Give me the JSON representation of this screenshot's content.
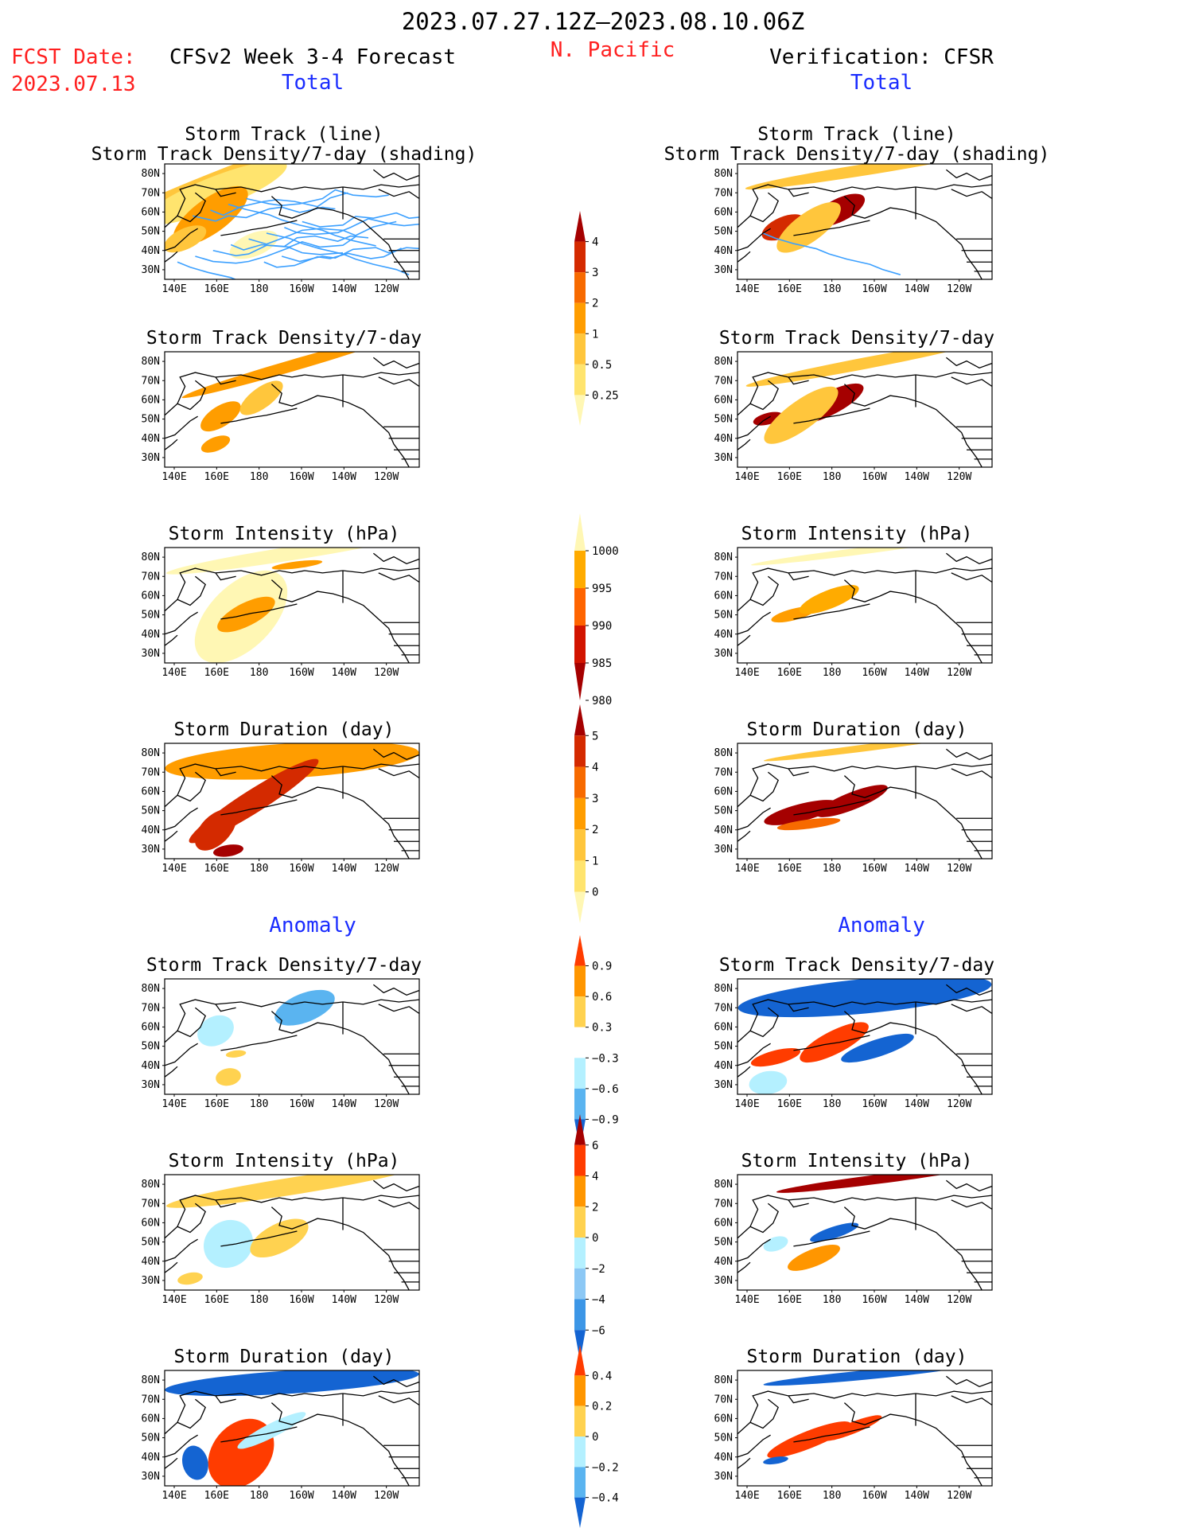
{
  "header": {
    "period": "2023.07.27.12Z–2023.08.10.06Z",
    "region": "N. Pacific",
    "fcst_label": "FCST Date:",
    "fcst_date": "2023.07.13",
    "left_title": "CFSv2 Week 3-4 Forecast",
    "right_title": "Verification: CFSR",
    "total_label": "Total",
    "anomaly_label": "Anomaly"
  },
  "axes": {
    "lat_labels": [
      "80N",
      "70N",
      "60N",
      "50N",
      "40N",
      "30N"
    ],
    "lon_labels": [
      "140E",
      "160E",
      "180",
      "160W",
      "140W",
      "120W"
    ]
  },
  "panels": [
    {
      "title1": "Storm Track (line)",
      "title2": "Storm Track Density/7-day (shading)",
      "left_field": "track_fcst",
      "right_field": "track_obs",
      "scale": "density"
    },
    {
      "title1": "Storm Track Density/7-day",
      "title2": "",
      "left_field": "dens_fcst",
      "right_field": "dens_obs",
      "scale": "density"
    },
    {
      "title1": "Storm Intensity (hPa)",
      "title2": "",
      "left_field": "int_fcst",
      "right_field": "int_obs",
      "scale": "intensity"
    },
    {
      "title1": "Storm Duration (day)",
      "title2": "",
      "left_field": "dur_fcst",
      "right_field": "dur_obs",
      "scale": "duration"
    },
    {
      "title1": "Storm Track Density/7-day",
      "title2": "",
      "left_field": "dens_anom_fcst",
      "right_field": "dens_anom_obs",
      "scale": "dens_anom"
    },
    {
      "title1": "Storm Intensity (hPa)",
      "title2": "",
      "left_field": "int_anom_fcst",
      "right_field": "int_anom_obs",
      "scale": "int_anom"
    },
    {
      "title1": "Storm Duration (day)",
      "title2": "",
      "left_field": "dur_anom_fcst",
      "right_field": "dur_anom_obs",
      "scale": "dur_anom"
    }
  ],
  "colorbars": [
    {
      "id": "density",
      "labels": [
        "4",
        "3",
        "2",
        "1",
        "0.5",
        "0.25"
      ],
      "colors": [
        "#a50000",
        "#d42a00",
        "#f76a00",
        "#ff9d00",
        "#ffc63c",
        "#ffe46e",
        "#fff7b4"
      ]
    },
    {
      "id": "intensity",
      "labels": [
        "1000",
        "995",
        "990",
        "985",
        "980"
      ],
      "colors": [
        "#fff7b4",
        "#ffab00",
        "#ff6400",
        "#d21400",
        "#a50000"
      ]
    },
    {
      "id": "duration",
      "labels": [
        "5",
        "4",
        "3",
        "2",
        "1",
        "0"
      ],
      "colors": [
        "#a50000",
        "#d42a00",
        "#f76a00",
        "#ff9d00",
        "#ffc63c",
        "#ffe46e",
        "#fff7b4"
      ]
    },
    {
      "id": "dens_anom",
      "labels": [
        "0.9",
        "0.6",
        "0.3",
        "−0.3",
        "−0.6",
        "−0.9"
      ],
      "colors": [
        "#ff3c00",
        "#ff9600",
        "#ffd250",
        "#ffffff",
        "#b4f0ff",
        "#5ab4f0",
        "#1464d2"
      ]
    },
    {
      "id": "int_anom",
      "labels": [
        "6",
        "4",
        "2",
        "0",
        "−2",
        "−4",
        "−6"
      ],
      "colors": [
        "#a50000",
        "#ff3c00",
        "#ff9600",
        "#ffd250",
        "#b4f0ff",
        "#8cc8f5",
        "#3c96e6",
        "#1464d2"
      ]
    },
    {
      "id": "dur_anom",
      "labels": [
        "0.4",
        "0.2",
        "0",
        "−0.2",
        "−0.4"
      ],
      "colors": [
        "#ff3c00",
        "#ff9600",
        "#ffd250",
        "#b4f0ff",
        "#5ab4f0",
        "#1464d2"
      ]
    }
  ],
  "map_data": {
    "projection": "lat-lon, 140E–110W, 25N–85N",
    "fields": {
      "track_fcst": [
        [
          0.22,
          0.1,
          0.95,
          0.1,
          "#ffc63c",
          0.12
        ],
        [
          0.2,
          0.25,
          0.6,
          0.28,
          "#ffe46e",
          0.12
        ],
        [
          0.18,
          0.45,
          0.35,
          0.3,
          "#ff9d00",
          0.2
        ],
        [
          0.08,
          0.65,
          0.18,
          0.18,
          "#ffc63c",
          0.14
        ],
        [
          0.35,
          0.7,
          0.2,
          0.2,
          "#fff7b4",
          0.12
        ]
      ],
      "track_obs": [
        [
          0.5,
          0.05,
          0.95,
          0.1,
          "#ffc63c",
          0.05
        ],
        [
          0.18,
          0.55,
          0.18,
          0.18,
          "#d42a00",
          0.13
        ],
        [
          0.4,
          0.4,
          0.22,
          0.2,
          "#a50000",
          0.15
        ],
        [
          0.28,
          0.55,
          0.3,
          0.25,
          "#ffc63c",
          0.2
        ]
      ],
      "dens_fcst": [
        [
          0.5,
          0.12,
          0.9,
          0.1,
          "#ff9d00",
          0.09
        ],
        [
          0.22,
          0.56,
          0.18,
          0.18,
          "#ff9d00",
          0.18
        ],
        [
          0.38,
          0.4,
          0.2,
          0.18,
          "#ffc63c",
          0.2
        ],
        [
          0.2,
          0.8,
          0.12,
          0.12,
          "#ff9d00",
          0.12
        ]
      ],
      "dens_obs": [
        [
          0.5,
          0.1,
          0.95,
          0.1,
          "#ffc63c",
          0.06
        ],
        [
          0.12,
          0.58,
          0.12,
          0.1,
          "#a50000",
          0.08
        ],
        [
          0.36,
          0.45,
          0.3,
          0.2,
          "#a50000",
          0.15
        ],
        [
          0.25,
          0.55,
          0.35,
          0.25,
          "#ffc63c",
          0.2
        ]
      ],
      "int_fcst": [
        [
          0.5,
          0.05,
          1.0,
          0.12,
          "#fff7b4",
          0.05
        ],
        [
          0.52,
          0.15,
          0.2,
          0.06,
          "#ff9d00",
          0.04
        ],
        [
          0.3,
          0.6,
          0.45,
          0.55,
          "#fff7b4",
          0.25
        ],
        [
          0.32,
          0.58,
          0.25,
          0.2,
          "#ff9d00",
          0.15
        ]
      ],
      "int_obs": [
        [
          0.45,
          0.04,
          0.8,
          0.06,
          "#fff7b4",
          0.04
        ],
        [
          0.22,
          0.58,
          0.18,
          0.1,
          "#ff9d00",
          0.08
        ],
        [
          0.36,
          0.45,
          0.25,
          0.16,
          "#ffab00",
          0.12
        ]
      ],
      "dur_fcst": [
        [
          0.5,
          0.15,
          1.0,
          0.3,
          "#ff9d00",
          0.02
        ],
        [
          0.35,
          0.5,
          0.6,
          0.2,
          "#d42a00",
          0.18
        ],
        [
          0.2,
          0.75,
          0.2,
          0.25,
          "#d42a00",
          0.25
        ],
        [
          0.25,
          0.93,
          0.12,
          0.1,
          "#a50000",
          0.05
        ]
      ],
      "dur_obs": [
        [
          0.5,
          0.04,
          0.8,
          0.06,
          "#ffc63c",
          0.04
        ],
        [
          0.25,
          0.6,
          0.3,
          0.15,
          "#a50000",
          0.08
        ],
        [
          0.45,
          0.5,
          0.3,
          0.15,
          "#a50000",
          0.12
        ],
        [
          0.28,
          0.7,
          0.25,
          0.08,
          "#f76a00",
          0.04
        ]
      ],
      "dens_anom_fcst": [
        [
          0.2,
          0.45,
          0.15,
          0.25,
          "#b4f0ff",
          0.15
        ],
        [
          0.55,
          0.25,
          0.25,
          0.25,
          "#5ab4f0",
          0.12
        ],
        [
          0.25,
          0.85,
          0.1,
          0.15,
          "#ffd250",
          0.06
        ],
        [
          0.28,
          0.65,
          0.08,
          0.06,
          "#ffd250",
          0.04
        ]
      ],
      "dens_anom_obs": [
        [
          0.5,
          0.15,
          1.0,
          0.3,
          "#1464d2",
          0.03
        ],
        [
          0.15,
          0.68,
          0.2,
          0.12,
          "#ff3c00",
          0.08
        ],
        [
          0.38,
          0.55,
          0.3,
          0.2,
          "#ff3c00",
          0.15
        ],
        [
          0.55,
          0.6,
          0.3,
          0.15,
          "#1464d2",
          0.1
        ],
        [
          0.12,
          0.9,
          0.15,
          0.2,
          "#b4f0ff",
          0.05
        ]
      ],
      "int_anom_fcst": [
        [
          0.5,
          0.1,
          1.0,
          0.15,
          "#ffd250",
          0.05
        ],
        [
          0.25,
          0.6,
          0.2,
          0.4,
          "#b4f0ff",
          0.2
        ],
        [
          0.45,
          0.55,
          0.25,
          0.25,
          "#ffd250",
          0.15
        ],
        [
          0.1,
          0.9,
          0.1,
          0.1,
          "#ffd250",
          0.06
        ]
      ],
      "int_anom_obs": [
        [
          0.55,
          0.04,
          0.8,
          0.08,
          "#a50000",
          0.04
        ],
        [
          0.38,
          0.5,
          0.2,
          0.1,
          "#1464d2",
          0.1
        ],
        [
          0.3,
          0.72,
          0.22,
          0.15,
          "#ff9600",
          0.12
        ],
        [
          0.15,
          0.6,
          0.1,
          0.12,
          "#b4f0ff",
          0.1
        ]
      ],
      "dur_anom_fcst": [
        [
          0.5,
          0.1,
          1.0,
          0.2,
          "#1464d2",
          0.02
        ],
        [
          0.3,
          0.72,
          0.3,
          0.5,
          "#ff3c00",
          0.28
        ],
        [
          0.12,
          0.8,
          0.1,
          0.3,
          "#1464d2",
          0.08
        ],
        [
          0.42,
          0.52,
          0.3,
          0.12,
          "#b4f0ff",
          0.15
        ]
      ],
      "dur_anom_obs": [
        [
          0.5,
          0.04,
          0.8,
          0.08,
          "#1464d2",
          0.03
        ],
        [
          0.28,
          0.6,
          0.35,
          0.15,
          "#ff3c00",
          0.12
        ],
        [
          0.45,
          0.5,
          0.25,
          0.1,
          "#ff3c00",
          0.12
        ],
        [
          0.15,
          0.78,
          0.1,
          0.06,
          "#1464d2",
          0.05
        ]
      ]
    }
  },
  "colors": {
    "title_red": "#ff2020",
    "title_blue": "#1a2cff",
    "land": "#000000"
  }
}
